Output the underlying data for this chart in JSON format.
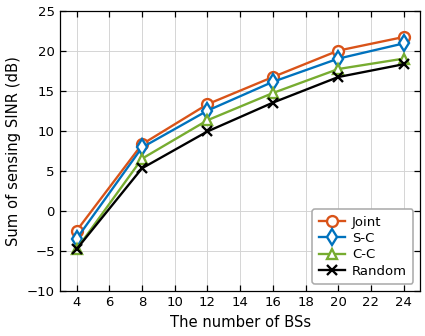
{
  "x": [
    4,
    8,
    12,
    16,
    20,
    24
  ],
  "joint": [
    -2.5,
    8.3,
    13.3,
    16.7,
    20.0,
    21.7
  ],
  "sc": [
    -3.5,
    7.9,
    12.5,
    16.1,
    19.0,
    20.9
  ],
  "cc": [
    -4.8,
    6.5,
    11.3,
    14.7,
    17.7,
    19.0
  ],
  "random": [
    -4.8,
    5.3,
    9.9,
    13.5,
    16.7,
    18.3
  ],
  "joint_color": "#D95319",
  "sc_color": "#0072BD",
  "cc_color": "#77AC30",
  "random_color": "#000000",
  "xlabel": "The number of BSs",
  "ylabel": "Sum of sensing SINR (dB)",
  "xlim": [
    3,
    25
  ],
  "ylim": [
    -10,
    25
  ],
  "xticks": [
    4,
    6,
    8,
    10,
    12,
    14,
    16,
    18,
    20,
    22,
    24
  ],
  "yticks": [
    -10,
    -5,
    0,
    5,
    10,
    15,
    20,
    25
  ],
  "legend_labels": [
    "Joint",
    "S-C",
    "C-C",
    "Random"
  ],
  "bg_color": "#FFFFFF",
  "grid_color": "#D3D3D3"
}
